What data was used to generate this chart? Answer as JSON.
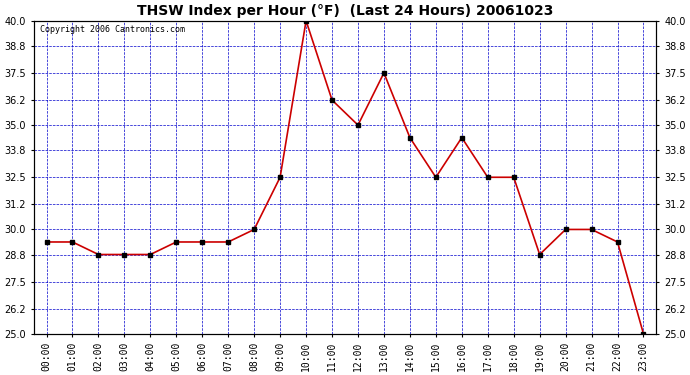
{
  "title": "THSW Index per Hour (°F)  (Last 24 Hours) 20061023",
  "copyright": "Copyright 2006 Cantronics.com",
  "hours": [
    0,
    1,
    2,
    3,
    4,
    5,
    6,
    7,
    8,
    9,
    10,
    11,
    12,
    13,
    14,
    15,
    16,
    17,
    18,
    19,
    20,
    21,
    22,
    23
  ],
  "hour_labels": [
    "00:00",
    "01:00",
    "02:00",
    "03:00",
    "04:00",
    "05:00",
    "06:00",
    "07:00",
    "08:00",
    "09:00",
    "10:00",
    "11:00",
    "12:00",
    "13:00",
    "14:00",
    "15:00",
    "16:00",
    "17:00",
    "18:00",
    "19:00",
    "20:00",
    "21:00",
    "22:00",
    "23:00"
  ],
  "values": [
    29.4,
    29.4,
    28.8,
    28.8,
    28.8,
    29.4,
    29.4,
    29.4,
    30.0,
    32.5,
    40.0,
    36.2,
    35.0,
    37.5,
    34.4,
    32.5,
    34.4,
    32.5,
    32.5,
    28.8,
    30.0,
    30.0,
    29.4,
    25.0
  ],
  "ylim_min": 25.0,
  "ylim_max": 40.0,
  "yticks": [
    25.0,
    26.2,
    27.5,
    28.8,
    30.0,
    31.2,
    32.5,
    33.8,
    35.0,
    36.2,
    37.5,
    38.8,
    40.0
  ],
  "line_color": "#cc0000",
  "marker_color": "#000000",
  "plot_bg": "#ffffff",
  "grid_color": "#0000cc",
  "fig_bg": "#ffffff",
  "border_color": "#000000",
  "title_fontsize": 10,
  "copyright_fontsize": 6
}
